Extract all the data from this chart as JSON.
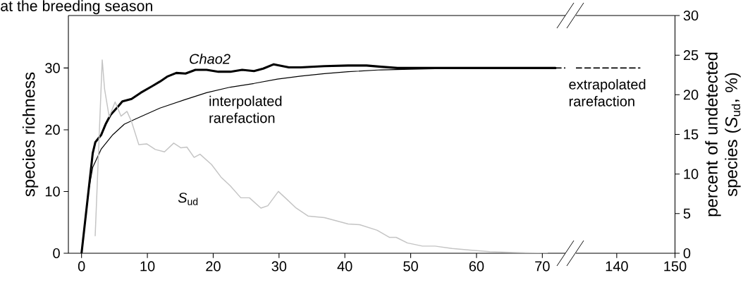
{
  "chart_data": [
    {
      "type": "line",
      "title": "at the breeding season",
      "ylabel": "species richness",
      "xlim": [
        -2,
        73.5
      ],
      "xticks": [
        0,
        10,
        20,
        30,
        40,
        50,
        60,
        70
      ],
      "ylim": [
        0,
        38.5
      ],
      "yticks": [
        0,
        10,
        20,
        30
      ],
      "y2lim": [
        0,
        30
      ],
      "series": [
        {
          "color": "#000000",
          "x": [
            0,
            1.7,
            2.1,
            3,
            3.7,
            4.4,
            5.5,
            6.2,
            7.6,
            9,
            10.8,
            11.9,
            13,
            14.4,
            15.8,
            17.3,
            19,
            20.8,
            22.6,
            24.4,
            26.2,
            27.6,
            29.2,
            31.5,
            33.3,
            36.9,
            40.5,
            43.3,
            45.5,
            48,
            55,
            60,
            65,
            72
          ],
          "values": [
            0,
            16.2,
            18,
            19.2,
            21,
            22.4,
            23.7,
            24.6,
            25,
            26,
            27.1,
            27.8,
            28.6,
            29.2,
            29.1,
            29.7,
            29.7,
            29.4,
            29.4,
            29.7,
            29.5,
            29.9,
            30.6,
            30.1,
            30.1,
            30.3,
            30.4,
            30.4,
            30.2,
            30,
            30,
            30,
            30,
            30
          ]
        },
        {
          "color": "#000000",
          "x": [
            0,
            1,
            1.7,
            3,
            4.75,
            6.5,
            8.3,
            11.9,
            15.5,
            19,
            22.6,
            26.2,
            29.75,
            33.3,
            36.9,
            40.5,
            45.5,
            50,
            55,
            60,
            72
          ],
          "values": [
            0,
            9.7,
            13.9,
            16.9,
            19.2,
            20.9,
            21.8,
            23.5,
            24.8,
            26,
            26.9,
            27.5,
            28.2,
            28.7,
            29.1,
            29.4,
            29.7,
            29.8,
            29.9,
            30,
            30
          ]
        },
        {
          "color": "#c4c4c4",
          "axis": "y2",
          "x": [
            2.07,
            3.14,
            3.5,
            4.2,
            5.1,
            6,
            6.9,
            7.6,
            8.7,
            9.9,
            11.2,
            12.6,
            14,
            15.1,
            16,
            17.1,
            18,
            19.75,
            21.2,
            22.6,
            24.2,
            25.5,
            27.25,
            28.3,
            29.9,
            31.2,
            32.6,
            34.4,
            36.9,
            38.7,
            40.5,
            42.25,
            44.9,
            46.8,
            47.8,
            49.5,
            51.8,
            53.7,
            56.3,
            59,
            62,
            65.8,
            70.8
          ],
          "values": [
            2.2,
            24.4,
            20.7,
            17.2,
            19.1,
            17.3,
            17.9,
            16.6,
            13.7,
            13.8,
            13.1,
            12.8,
            13.9,
            13.3,
            13.4,
            12.1,
            12.5,
            11.2,
            9.6,
            8.5,
            7,
            7,
            5.7,
            6,
            7.8,
            6.8,
            5.7,
            4.7,
            4.5,
            4.1,
            3.7,
            3.6,
            2.9,
            2,
            2,
            1.3,
            0.9,
            0.9,
            0.6,
            0.4,
            0.2,
            0.1,
            0
          ]
        },
        {
          "color": "#000000",
          "line_style": "dashed",
          "x": [
            72,
            73.5
          ],
          "values": [
            30,
            30
          ]
        }
      ],
      "annotations": [
        "Chao2",
        "interpolated rarefaction",
        "*S*$_{ud}$"
      ]
    },
    {
      "type": "line",
      "y2label": "percent of undetected species (*S*$_{ud}$, %)",
      "xlim": [
        133,
        150
      ],
      "xticks": [
        140,
        150
      ],
      "ylim": [
        0,
        38.5
      ],
      "y2lim": [
        0,
        30
      ],
      "y2ticks": [
        0,
        5,
        10,
        15,
        20,
        25,
        30
      ],
      "series": [
        {
          "color": "#000000",
          "line_style": "dashed",
          "x": [
            133,
            144
          ],
          "values": [
            30,
            30
          ]
        }
      ],
      "annotations": [
        "extrapolated rarefaction"
      ]
    }
  ]
}
